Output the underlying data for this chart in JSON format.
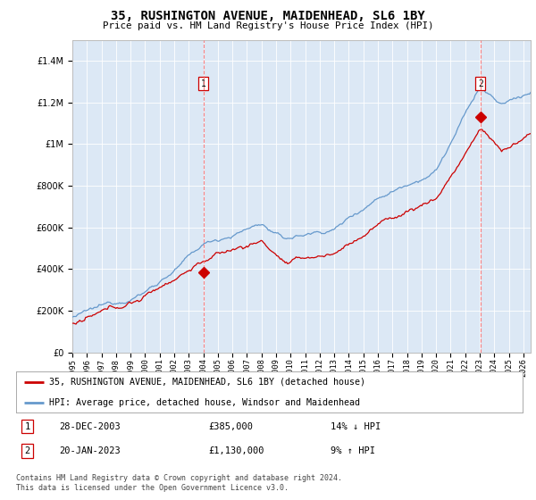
{
  "title": "35, RUSHINGTON AVENUE, MAIDENHEAD, SL6 1BY",
  "subtitle": "Price paid vs. HM Land Registry's House Price Index (HPI)",
  "legend_property": "35, RUSHINGTON AVENUE, MAIDENHEAD, SL6 1BY (detached house)",
  "legend_hpi": "HPI: Average price, detached house, Windsor and Maidenhead",
  "annotation1_date": "28-DEC-2003",
  "annotation1_price": "£385,000",
  "annotation1_hpi": "14% ↓ HPI",
  "annotation2_date": "20-JAN-2023",
  "annotation2_price": "£1,130,000",
  "annotation2_hpi": "9% ↑ HPI",
  "footnote1": "Contains HM Land Registry data © Crown copyright and database right 2024.",
  "footnote2": "This data is licensed under the Open Government Licence v3.0.",
  "property_color": "#cc0000",
  "hpi_color": "#6699cc",
  "background_color": "#dce8f5",
  "ylim": [
    0,
    1500000
  ],
  "yticks": [
    0,
    200000,
    400000,
    600000,
    800000,
    1000000,
    1200000,
    1400000
  ],
  "sale1_x": 2004.0,
  "sale1_y": 385000,
  "sale2_x": 2023.05,
  "sale2_y": 1130000,
  "xmin": 1995,
  "xmax": 2026.5
}
